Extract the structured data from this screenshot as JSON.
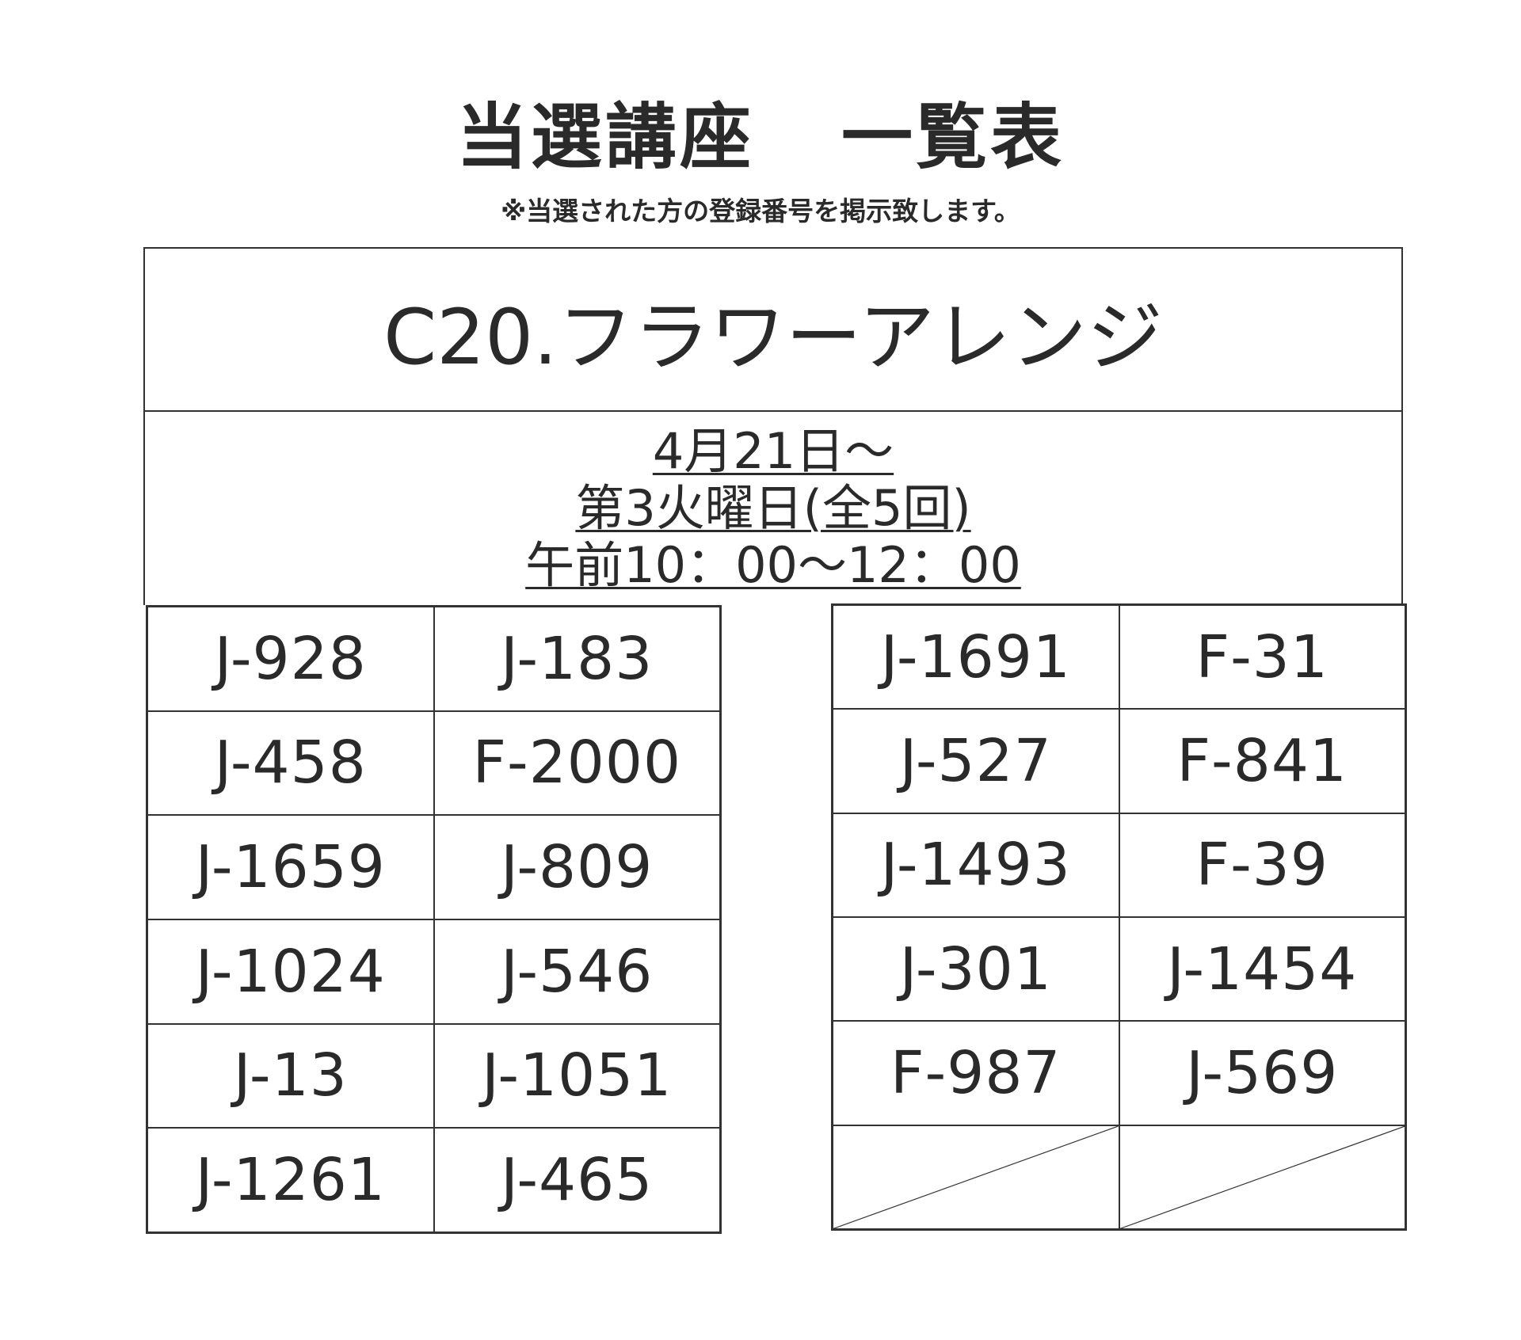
{
  "title_left": "当選講座",
  "title_right": "一覧表",
  "subtitle": "※当選された方の登録番号を掲示致します。",
  "course": "C20.フラワーアレンジ",
  "schedule": [
    "4月21日～",
    "第3火曜日(全5回)",
    "午前10：00～12：00"
  ],
  "left_table": [
    "J-928",
    "J-183",
    "J-458",
    "F-2000",
    "J-1659",
    "J-809",
    "J-1024",
    "J-546",
    "J-13",
    "J-1051",
    "J-1261",
    "J-465"
  ],
  "right_table": [
    "J-1691",
    "F-31",
    "J-527",
    "F-841",
    "J-1493",
    "F-39",
    "J-301",
    "J-1454",
    "F-987",
    "J-569",
    "",
    ""
  ]
}
